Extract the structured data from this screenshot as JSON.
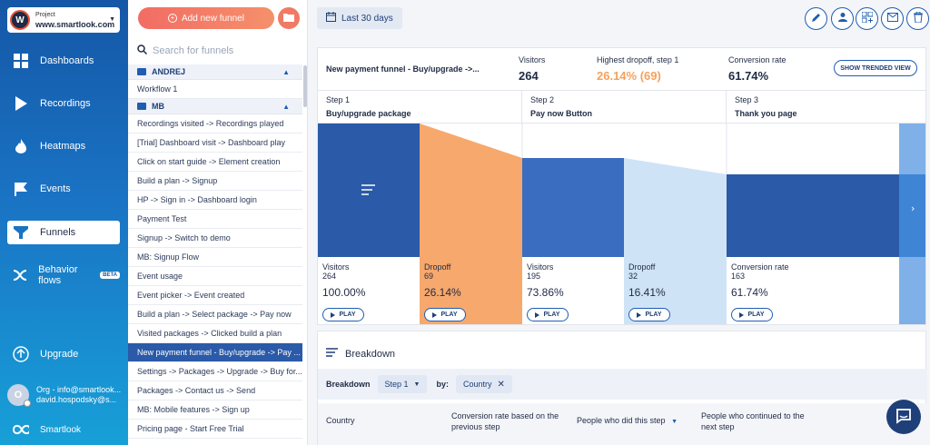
{
  "project": {
    "label": "Project",
    "name": "www.smartlook.com",
    "logo_letter": "W"
  },
  "nav": {
    "items": [
      {
        "label": "Dashboards",
        "icon": "grid-icon"
      },
      {
        "label": "Recordings",
        "icon": "play-icon"
      },
      {
        "label": "Heatmaps",
        "icon": "flame-icon"
      },
      {
        "label": "Events",
        "icon": "flag-icon"
      },
      {
        "label": "Funnels",
        "icon": "funnel-icon",
        "active": true
      },
      {
        "label": "Behavior flows",
        "icon": "flow-icon",
        "badge": "BETA"
      }
    ],
    "upgrade": "Upgrade",
    "org_line1": "Org - info@smartlook...",
    "org_line2": "david.hospodsky@s...",
    "avatar_letter": "O",
    "brand": "Smartlook"
  },
  "funnels": {
    "add_label": "Add new funnel",
    "search_placeholder": "Search for funnels",
    "group1": "ANDREJ",
    "group1_items": [
      "Workflow 1"
    ],
    "group2": "MB",
    "group2_items": [
      "Recordings visited -> Recordings played",
      "[Trial] Dashboard visit -> Dashboard play",
      "Click on start guide -> Element creation",
      "Build a plan -> Signup",
      "HP -> Sign in -> Dashboard login",
      "Payment Test",
      "Signup -> Switch to demo",
      "MB: Signup Flow",
      "Event usage",
      "Event picker -> Event created",
      "Build a plan -> Select package -> Pay now",
      "Visited packages -> Clicked build a plan",
      "New payment funnel - Buy/upgrade -> Pay ...",
      "Settings -> Packages -> Upgrade -> Buy for...",
      "Packages -> Contact us -> Send",
      "MB: Mobile features -> Sign up",
      "Pricing page - Start Free Trial"
    ]
  },
  "topbar": {
    "date_range": "Last 30 days"
  },
  "funnel": {
    "name": "New payment funnel - Buy/upgrade ->...",
    "visitors_label": "Visitors",
    "visitors": "264",
    "dropoff_label": "Highest dropoff, step 1",
    "dropoff": "26.14% (69)",
    "conversion_label": "Conversion rate",
    "conversion": "61.74%",
    "trend_button": "SHOW TRENDED VIEW",
    "steps": [
      {
        "step": "Step 1",
        "name": "Buy/upgrade package"
      },
      {
        "step": "Step 2",
        "name": "Pay now Button"
      },
      {
        "step": "Step 3",
        "name": "Thank you page"
      }
    ],
    "metrics": [
      {
        "label": "Visitors",
        "count": "264",
        "pct": "100.00%"
      },
      {
        "label": "Dropoff",
        "count": "69",
        "pct": "26.14%"
      },
      {
        "label": "Visitors",
        "count": "195",
        "pct": "73.86%"
      },
      {
        "label": "Dropoff",
        "count": "32",
        "pct": "16.41%"
      },
      {
        "label": "Conversion rate",
        "count": "163",
        "pct": "61.74%"
      }
    ],
    "play_label": "PLAY"
  },
  "breakdown": {
    "title": "Breakdown",
    "label": "Breakdown",
    "step_select": "Step 1",
    "by_label": "by:",
    "dimension": "Country",
    "columns": [
      "Country",
      "Conversion rate based on the previous step",
      "People who did this step",
      "People who continued to the next step"
    ]
  },
  "colors": {
    "dark_blue": "#2a5aa8",
    "orange": "#f7a86c",
    "mid_blue": "#3a6cc0",
    "light_blue": "#cfe3f7",
    "dropoff_text": "#f5a15b"
  }
}
